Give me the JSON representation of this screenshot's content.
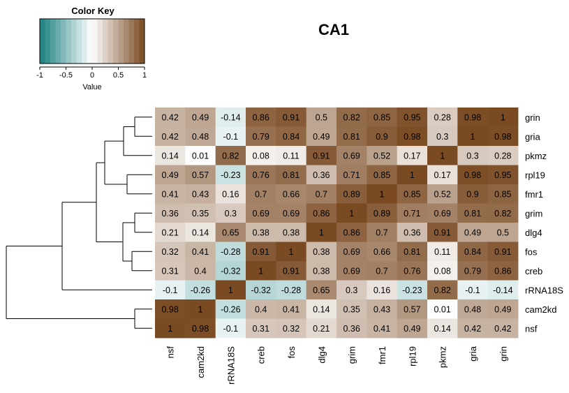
{
  "chart_data": {
    "type": "heatmap",
    "title": "CA1",
    "color_key": {
      "title": "Color Key",
      "xlabel": "Value",
      "range": [
        -1,
        1
      ],
      "ticks": [
        "-1",
        "-0.5",
        "0",
        "0.5",
        "1"
      ],
      "palette": [
        "#1a8080",
        "#ffffff",
        "#7a4a22"
      ]
    },
    "rows": [
      "grin",
      "gria",
      "pkmz",
      "rpl19",
      "fmr1",
      "grim",
      "dlg4",
      "fos",
      "creb",
      "rRNA18S",
      "cam2kd",
      "nsf"
    ],
    "columns": [
      "nsf",
      "cam2kd",
      "rRNA18S",
      "creb",
      "fos",
      "dlg4",
      "grim",
      "fmr1",
      "rpl19",
      "pkmz",
      "gria",
      "grin"
    ],
    "values": [
      [
        0.42,
        0.49,
        -0.14,
        0.86,
        0.91,
        0.5,
        0.82,
        0.85,
        0.95,
        0.28,
        0.98,
        1
      ],
      [
        0.42,
        0.48,
        -0.1,
        0.79,
        0.84,
        0.49,
        0.81,
        0.9,
        0.98,
        0.3,
        1,
        0.98
      ],
      [
        0.14,
        0.01,
        0.82,
        0.08,
        0.11,
        0.91,
        0.69,
        0.52,
        0.17,
        1,
        0.3,
        0.28
      ],
      [
        0.49,
        0.57,
        -0.23,
        0.76,
        0.81,
        0.36,
        0.71,
        0.85,
        1,
        0.17,
        0.98,
        0.95
      ],
      [
        0.41,
        0.43,
        0.16,
        0.7,
        0.66,
        0.7,
        0.89,
        1,
        0.85,
        0.52,
        0.9,
        0.85
      ],
      [
        0.36,
        0.35,
        0.3,
        0.69,
        0.69,
        0.86,
        1,
        0.89,
        0.71,
        0.69,
        0.81,
        0.82
      ],
      [
        0.21,
        0.14,
        0.65,
        0.38,
        0.38,
        1,
        0.86,
        0.7,
        0.36,
        0.91,
        0.49,
        0.5
      ],
      [
        0.32,
        0.41,
        -0.28,
        0.91,
        1,
        0.38,
        0.69,
        0.66,
        0.81,
        0.11,
        0.84,
        0.91
      ],
      [
        0.31,
        0.4,
        -0.32,
        1,
        0.91,
        0.38,
        0.69,
        0.7,
        0.76,
        0.08,
        0.79,
        0.86
      ],
      [
        -0.1,
        -0.26,
        1,
        -0.32,
        -0.28,
        0.65,
        0.3,
        0.16,
        -0.23,
        0.82,
        -0.1,
        -0.14
      ],
      [
        0.98,
        1,
        -0.26,
        0.4,
        0.41,
        0.14,
        0.35,
        0.43,
        0.57,
        0.01,
        0.48,
        0.49
      ],
      [
        1,
        0.98,
        -0.1,
        0.31,
        0.32,
        0.21,
        0.36,
        0.41,
        0.49,
        0.14,
        0.42,
        0.42
      ]
    ],
    "row_dendrogram": true
  }
}
